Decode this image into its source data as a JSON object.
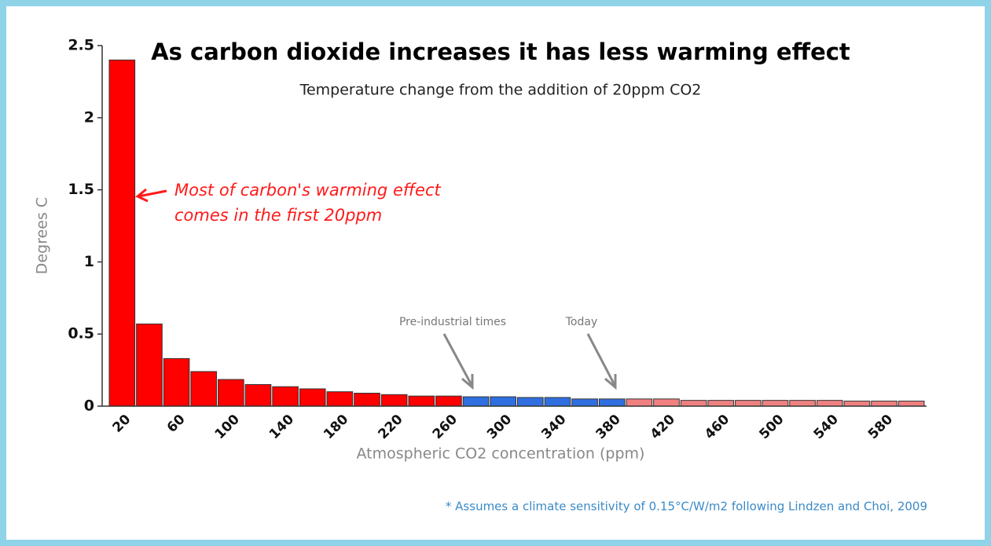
{
  "chart_data": {
    "type": "bar",
    "title": "As carbon dioxide increases it has less warming effect",
    "subtitle": "Temperature change from the addition of 20ppm CO2",
    "y_label": "Degrees C",
    "x_label": "Atmospheric CO2 concentration (ppm)",
    "categories": [
      20,
      null,
      60,
      null,
      100,
      null,
      140,
      null,
      180,
      null,
      220,
      null,
      260,
      null,
      300,
      null,
      340,
      null,
      380,
      null,
      420,
      null,
      460,
      null,
      500,
      null,
      540,
      null,
      580,
      null
    ],
    "values": [
      2.4,
      0.57,
      0.33,
      0.24,
      0.185,
      0.15,
      0.135,
      0.12,
      0.1,
      0.09,
      0.08,
      0.07,
      0.07,
      0.065,
      0.065,
      0.06,
      0.06,
      0.05,
      0.05,
      0.05,
      0.05,
      0.04,
      0.04,
      0.04,
      0.04,
      0.04,
      0.04,
      0.035,
      0.035,
      0.035
    ],
    "colors": [
      "#ff0000",
      "#ff0000",
      "#ff0000",
      "#ff0000",
      "#ff0000",
      "#ff0000",
      "#ff0000",
      "#ff0000",
      "#ff0000",
      "#ff0000",
      "#ff0000",
      "#ff0000",
      "#ff0000",
      "#2f6fe0",
      "#2f6fe0",
      "#2f6fe0",
      "#2f6fe0",
      "#2f6fe0",
      "#2f6fe0",
      "#f08080",
      "#f08080",
      "#f08080",
      "#f08080",
      "#f08080",
      "#f08080",
      "#f08080",
      "#f08080",
      "#f08080",
      "#f08080",
      "#f08080"
    ],
    "ylim": [
      0,
      2.5
    ],
    "yticks": [
      0,
      0.5,
      1,
      1.5,
      2,
      2.5
    ],
    "annotations": {
      "callout": [
        "Most of carbon's warming effect",
        "comes in the first 20ppm"
      ],
      "pre_industrial": "Pre-industrial times",
      "today": "Today"
    },
    "footnote": "* Assumes a climate sensitivity of 0.15°C/W/m2 following Lindzen and Choi, 2009"
  }
}
